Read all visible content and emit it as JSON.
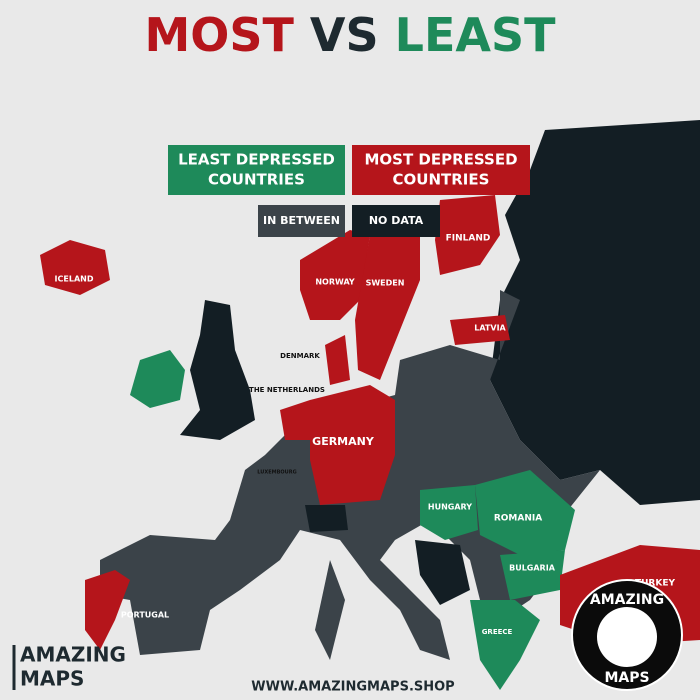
{
  "title": {
    "words": [
      {
        "text": "MOST",
        "color": "#b5151b"
      },
      {
        "text": "VS",
        "color": "#1e2a30"
      },
      {
        "text": "LEAST",
        "color": "#1e8a5a"
      }
    ],
    "subtitle": "DEPRESSED"
  },
  "legend": [
    {
      "lines": [
        "LEAST DEPRESSED",
        "COUNTRIES"
      ],
      "color": "#1e8a5a"
    },
    {
      "lines": [
        "MOST DEPRESSED",
        "COUNTRIES"
      ],
      "color": "#b5151b"
    },
    {
      "lines": [
        "IN BETWEEN"
      ],
      "color": "#3b4349"
    },
    {
      "lines": [
        "NO DATA"
      ],
      "color": "#131e24"
    }
  ],
  "countries": [
    {
      "label": "ICELAND",
      "category": 1
    },
    {
      "label": "NORWAY",
      "category": 1
    },
    {
      "label": "SWEDEN",
      "category": 1
    },
    {
      "label": "FINLAND",
      "category": 1
    },
    {
      "label": "LATVIA",
      "category": 1
    },
    {
      "label": "DENMARK",
      "category": 1
    },
    {
      "label": "THE NETHERLANDS",
      "category": 1
    },
    {
      "label": "GERMANY",
      "category": 1
    },
    {
      "label": "LUXEMBOURG",
      "category": 1
    },
    {
      "label": "HUNGARY",
      "category": 0
    },
    {
      "label": "ROMANIA",
      "category": 0
    },
    {
      "label": "BULGARIA",
      "category": 0
    },
    {
      "label": "PORTUGAL",
      "category": 1
    },
    {
      "label": "GREECE",
      "category": 0
    },
    {
      "label": "TURKEY",
      "category": 1
    }
  ],
  "branding": {
    "logo": [
      "AMAZING",
      "MAPS"
    ],
    "url": "WWW.AMAZINGMAPS.SHOP",
    "badge": [
      "AMAZING",
      "MAPS"
    ]
  }
}
